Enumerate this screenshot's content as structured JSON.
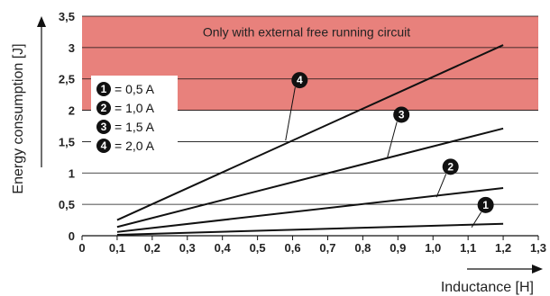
{
  "chart_data": {
    "type": "line",
    "ylabel": "Energy consumption [J]",
    "xlabel": "Inductance [H]",
    "xlim": [
      0,
      1.3
    ],
    "ylim": [
      0,
      3.5
    ],
    "x_ticks": [
      "0",
      "0,1",
      "0,2",
      "0,3",
      "0,4",
      "0,5",
      "0,6",
      "0,7",
      "0,8",
      "0,9",
      "1,0",
      "1,1",
      "1,2",
      "1,3"
    ],
    "y_ticks": [
      "0",
      "0,5",
      "1",
      "1,5",
      "2",
      "2,5",
      "3",
      "3,5"
    ],
    "grid": "horizontal",
    "shaded_region": {
      "y_from": 2.0,
      "y_to": 3.5,
      "color": "#e8817c",
      "label": "Only with external free running circuit"
    },
    "legend": {
      "placement": "top-left",
      "entries": [
        {
          "marker": "1",
          "text": "= 0,5 A"
        },
        {
          "marker": "2",
          "text": "= 1,0 A"
        },
        {
          "marker": "3",
          "text": "= 1,5 A"
        },
        {
          "marker": "4",
          "text": "= 2,0 A"
        }
      ]
    },
    "series": [
      {
        "marker": "1",
        "x": [
          0.1,
          1.2
        ],
        "y": [
          0.015,
          0.19
        ],
        "label_at": [
          1.15,
          0.49
        ]
      },
      {
        "marker": "2",
        "x": [
          0.1,
          1.2
        ],
        "y": [
          0.06,
          0.76
        ],
        "label_at": [
          1.05,
          1.1
        ]
      },
      {
        "marker": "3",
        "x": [
          0.1,
          1.2
        ],
        "y": [
          0.14,
          1.71
        ],
        "label_at": [
          0.91,
          1.93
        ]
      },
      {
        "marker": "4",
        "x": [
          0.1,
          1.2
        ],
        "y": [
          0.25,
          3.04
        ],
        "label_at": [
          0.62,
          2.48
        ]
      }
    ],
    "colors": {
      "line": "#111111",
      "grid": "#111111",
      "marker": "#111111"
    }
  }
}
